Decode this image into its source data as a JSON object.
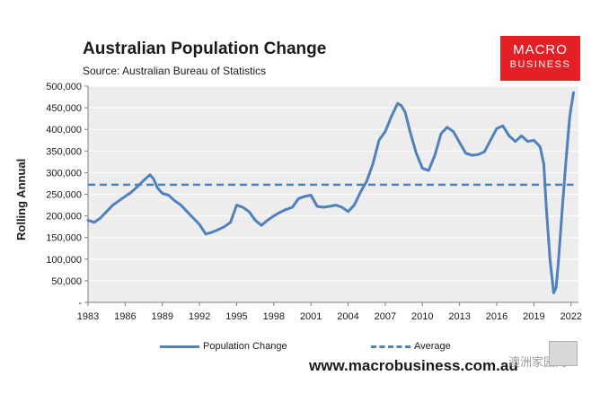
{
  "header": {
    "title": "Australian Population Change",
    "subtitle": "Source: Australian Bureau of Statistics"
  },
  "logo": {
    "line1": "MACRO",
    "line2": "BUSINESS",
    "color": "#e41f26"
  },
  "footer": {
    "url": "www.macrobusiness.com.au"
  },
  "watermark": {
    "text": "澳洲家园网"
  },
  "colors": {
    "series": "#4f81bd",
    "plot_bg": "#ededed",
    "text": "#1a1a1a"
  },
  "chart_data": {
    "type": "line",
    "title": "Australian Population Change",
    "ylabel": "Rolling Annual",
    "xlabel": "",
    "xlim": [
      1983,
      2022.6
    ],
    "ylim": [
      0,
      500000
    ],
    "xticks": [
      1983,
      1986,
      1989,
      1992,
      1995,
      1998,
      2001,
      2004,
      2007,
      2010,
      2013,
      2016,
      2019,
      2022
    ],
    "xtick_labels": [
      "1983",
      "1986",
      "1989",
      "1992",
      "1995",
      "1998",
      "2001",
      "2004",
      "2007",
      "2010",
      "2013",
      "2016",
      "2019",
      "2022"
    ],
    "yticks": [
      0,
      50000,
      100000,
      150000,
      200000,
      250000,
      300000,
      350000,
      400000,
      450000,
      500000
    ],
    "ytick_labels": [
      "-",
      "50,000",
      "100,000",
      "150,000",
      "200,000",
      "250,000",
      "300,000",
      "350,000",
      "400,000",
      "450,000",
      "500,000"
    ],
    "legend": [
      {
        "name": "Population Change",
        "style": "solid"
      },
      {
        "name": "Average",
        "style": "dashed"
      }
    ],
    "series": [
      {
        "name": "Population Change",
        "style": "solid",
        "x": [
          1983.0,
          1983.5,
          1984.0,
          1984.5,
          1985.0,
          1985.5,
          1986.0,
          1986.5,
          1987.0,
          1987.5,
          1988.0,
          1988.3,
          1988.6,
          1989.0,
          1989.5,
          1990.0,
          1990.5,
          1991.0,
          1991.5,
          1992.0,
          1992.5,
          1993.0,
          1993.5,
          1994.0,
          1994.5,
          1995.0,
          1995.5,
          1996.0,
          1996.5,
          1997.0,
          1997.5,
          1998.0,
          1998.5,
          1999.0,
          1999.5,
          2000.0,
          2000.5,
          2001.0,
          2001.5,
          2002.0,
          2002.5,
          2003.0,
          2003.5,
          2004.0,
          2004.5,
          2005.0,
          2005.5,
          2006.0,
          2006.5,
          2007.0,
          2007.5,
          2008.0,
          2008.3,
          2008.6,
          2009.0,
          2009.5,
          2010.0,
          2010.5,
          2011.0,
          2011.5,
          2012.0,
          2012.5,
          2013.0,
          2013.5,
          2014.0,
          2014.5,
          2015.0,
          2015.5,
          2016.0,
          2016.5,
          2017.0,
          2017.5,
          2018.0,
          2018.5,
          2019.0,
          2019.5,
          2019.8,
          2020.0,
          2020.3,
          2020.6,
          2020.8,
          2021.0,
          2021.3,
          2021.6,
          2021.9,
          2022.2
        ],
        "y": [
          190000,
          185000,
          195000,
          210000,
          225000,
          235000,
          245000,
          255000,
          268000,
          282000,
          295000,
          285000,
          265000,
          252000,
          248000,
          235000,
          225000,
          210000,
          195000,
          180000,
          158000,
          162000,
          168000,
          175000,
          185000,
          225000,
          220000,
          210000,
          190000,
          178000,
          190000,
          200000,
          208000,
          215000,
          220000,
          240000,
          245000,
          248000,
          222000,
          220000,
          222000,
          225000,
          220000,
          210000,
          225000,
          255000,
          280000,
          320000,
          375000,
          395000,
          430000,
          460000,
          455000,
          440000,
          395000,
          345000,
          310000,
          305000,
          340000,
          390000,
          405000,
          395000,
          370000,
          345000,
          340000,
          342000,
          348000,
          375000,
          402000,
          408000,
          385000,
          372000,
          385000,
          372000,
          375000,
          360000,
          320000,
          220000,
          100000,
          22000,
          35000,
          100000,
          220000,
          330000,
          430000,
          485000
        ]
      },
      {
        "name": "Average",
        "style": "dashed",
        "x": [
          1983.0,
          2022.2
        ],
        "y": [
          272000,
          272000
        ]
      }
    ]
  }
}
